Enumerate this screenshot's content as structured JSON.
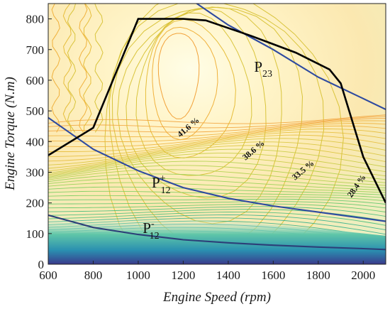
{
  "chart_data": {
    "type": "contour",
    "xlabel": "Engine Speed (rpm)",
    "ylabel": "Engine Torque (N.m)",
    "xlim": [
      600,
      2100
    ],
    "ylim": [
      0,
      850
    ],
    "xticks": [
      "600",
      "800",
      "1000",
      "1200",
      "1400",
      "1600",
      "1800",
      "2000"
    ],
    "yticks": [
      "0",
      "100",
      "200",
      "300",
      "400",
      "500",
      "600",
      "700",
      "800"
    ],
    "grid": false,
    "contour_labels": [
      {
        "text": "41.6 %",
        "x": 1230,
        "y": 440,
        "angle": -40
      },
      {
        "text": "38.6 %",
        "x": 1520,
        "y": 365,
        "angle": -40
      },
      {
        "text": "33.5 %",
        "x": 1740,
        "y": 300,
        "angle": -40
      },
      {
        "text": "28.4 %",
        "x": 1980,
        "y": 250,
        "angle": -55
      }
    ],
    "max_torque_line": {
      "x": [
        600,
        800,
        1000,
        1200,
        1300,
        1500,
        1700,
        1850,
        1900,
        2000,
        2100
      ],
      "y": [
        355,
        445,
        800,
        800,
        795,
        745,
        690,
        635,
        590,
        350,
        200
      ]
    },
    "series": [
      {
        "name": "P23",
        "sup": "",
        "sub": "23",
        "x": [
          1250,
          1400,
          1600,
          1800,
          2000,
          2100
        ],
        "y": [
          855,
          780,
          700,
          610,
          540,
          505
        ]
      },
      {
        "name": "P12+",
        "sup": "+",
        "sub": "12",
        "x": [
          600,
          800,
          1000,
          1200,
          1400,
          1600,
          1800,
          2000,
          2100
        ],
        "y": [
          478,
          375,
          305,
          250,
          215,
          190,
          170,
          150,
          140
        ]
      },
      {
        "name": "P12-",
        "sup": "-",
        "sub": "12",
        "x": [
          600,
          800,
          1000,
          1200,
          1400,
          1600,
          1800,
          2000,
          2100
        ],
        "y": [
          160,
          120,
          97,
          80,
          70,
          62,
          56,
          51,
          48
        ]
      }
    ],
    "curve_labels": [
      {
        "series": "P23",
        "x": 1515,
        "y": 628
      },
      {
        "series": "P12+",
        "x": 1060,
        "y": 250
      },
      {
        "series": "P12-",
        "x": 1020,
        "y": 102
      }
    ],
    "colors": {
      "low_eff": "#3b3b8f",
      "mid_eff": "#2fb08d",
      "high_eff": "#f0a33c",
      "peak_eff": "#fff7b0",
      "boundary": "#000000",
      "p_curves": "#2e4aa0"
    }
  }
}
